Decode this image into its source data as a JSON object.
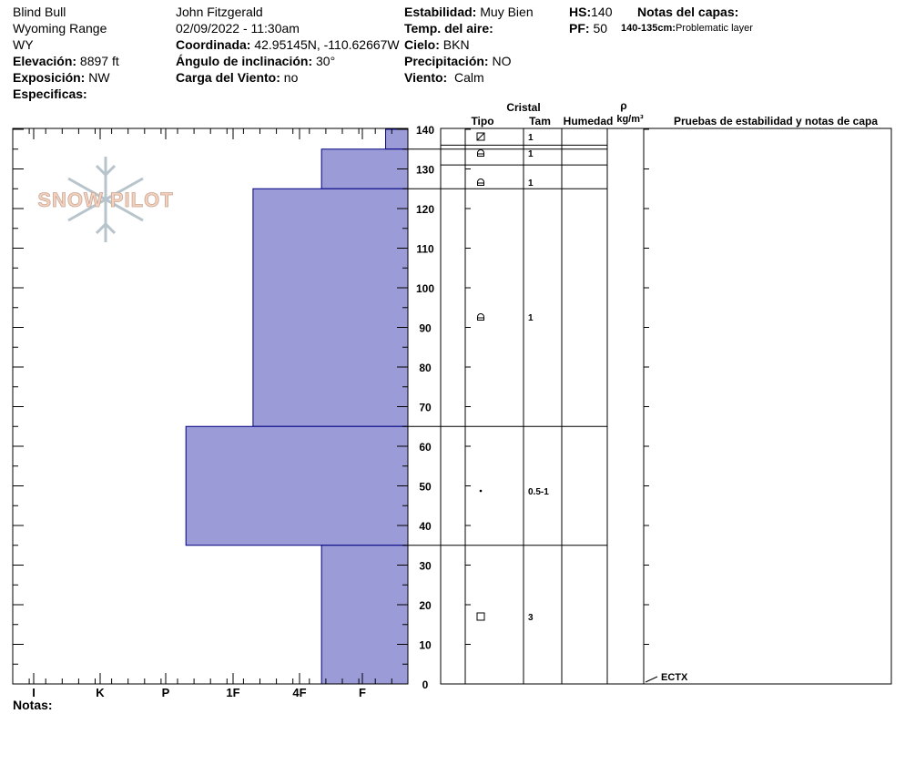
{
  "site": {
    "name": "Blind Bull",
    "range": "Wyoming Range",
    "state": "WY",
    "elevation_label": "Elevación:",
    "elevation": "8897 ft",
    "aspect_label": "Exposición:",
    "aspect": "NW",
    "specifics_label": "Especificas:"
  },
  "observer": {
    "name": "John Fitzgerald",
    "datetime": "02/09/2022 - 11:30am",
    "coord_label": "Coordinada:",
    "coord": "42.95145N, -110.62667W",
    "slope_label": "Ángulo de inclinación:",
    "slope": "30°",
    "wind_load_label": "Carga del Viento:",
    "wind_load": "no"
  },
  "conditions": {
    "stability_label": "Estabilidad:",
    "stability": "Muy Bien",
    "air_temp_label": "Temp. del aire:",
    "air_temp": "",
    "sky_label": "Cielo:",
    "sky": "BKN",
    "precip_label": "Precipitación:",
    "precip": "NO",
    "wind_label": "Viento:",
    "wind": "Calm"
  },
  "depths": {
    "hs_label": "HS:",
    "hs": "140",
    "pf_label": "PF:",
    "pf": "50"
  },
  "layer_notes": {
    "title": "Notas del capas:",
    "items": [
      {
        "range": "140-135cm:",
        "text": "Problematic layer"
      }
    ]
  },
  "notes_label": "Notas:",
  "logo": {
    "text": "SNOW PILOT"
  },
  "table": {
    "col_cristal": "Cristal",
    "col_tipo": "Tipo",
    "col_tam": "Tam",
    "col_humedad": "Humedad",
    "col_rho": "ρ",
    "col_rho_unit": "kg/m³",
    "col_tests": "Pruebas de estabilidad y notas de capa"
  },
  "chart_data": {
    "type": "bar",
    "orientation": "horizontal-profile",
    "xlabels": [
      "I",
      "K",
      "P",
      "1F",
      "4F",
      "F"
    ],
    "y_ticks": [
      0,
      10,
      20,
      30,
      40,
      50,
      60,
      70,
      80,
      90,
      100,
      110,
      120,
      130,
      140
    ],
    "ylim": [
      0,
      140
    ],
    "bar_color": "#9b9bd7",
    "bar_edge": "#000080",
    "layers": [
      {
        "top": 140,
        "bottom": 135,
        "hardness_index": 6.35,
        "grain_icon": "faceted-rounded-icon",
        "size": "1"
      },
      {
        "top": 135,
        "bottom": 125,
        "hardness_index": 5.35,
        "grain_icon": "faceted-icon",
        "size": "1"
      },
      {
        "top": 125,
        "bottom": 65,
        "hardness_index": 4.3,
        "grain_icon": "faceted-icon",
        "size": "1"
      },
      {
        "top": 65,
        "bottom": 35,
        "hardness_index": 3.3,
        "grain_icon": "rounded-icon",
        "size": "0.5-1"
      },
      {
        "top": 35,
        "bottom": 0,
        "hardness_index": 5.35,
        "grain_icon": "facet-square-icon",
        "size": "3"
      }
    ],
    "extra_row_lines": [
      136,
      131
    ],
    "tests": [
      {
        "depth": 0,
        "label": "ECTX"
      }
    ]
  }
}
